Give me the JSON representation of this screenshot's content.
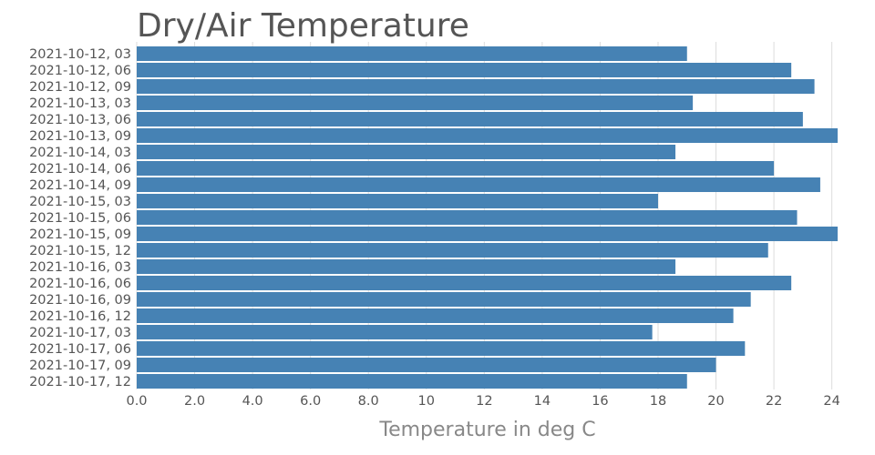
{
  "chart_data": {
    "type": "bar",
    "orientation": "horizontal",
    "title": "Dry/Air Temperature",
    "xlabel": "Temperature in deg C",
    "ylabel": "",
    "xlim": [
      0,
      24.2
    ],
    "x_ticks": [
      "0.0",
      "2.0",
      "4.0",
      "6.0",
      "8.0",
      "10",
      "12",
      "14",
      "16",
      "18",
      "20",
      "22",
      "24"
    ],
    "grid": true,
    "color": "#4682b4",
    "categories": [
      "2021-10-12, 03",
      "2021-10-12, 06",
      "2021-10-12, 09",
      "2021-10-13, 03",
      "2021-10-13, 06",
      "2021-10-13, 09",
      "2021-10-14, 03",
      "2021-10-14, 06",
      "2021-10-14, 09",
      "2021-10-15, 03",
      "2021-10-15, 06",
      "2021-10-15, 09",
      "2021-10-15, 12",
      "2021-10-16, 03",
      "2021-10-16, 06",
      "2021-10-16, 09",
      "2021-10-16, 12",
      "2021-10-17, 03",
      "2021-10-17, 06",
      "2021-10-17, 09",
      "2021-10-17, 12"
    ],
    "values": [
      19.0,
      22.6,
      23.4,
      19.2,
      23.0,
      24.2,
      18.6,
      22.0,
      23.6,
      18.0,
      22.8,
      24.2,
      21.8,
      18.6,
      22.6,
      21.2,
      20.6,
      17.8,
      21.0,
      20.0,
      19.0
    ]
  }
}
